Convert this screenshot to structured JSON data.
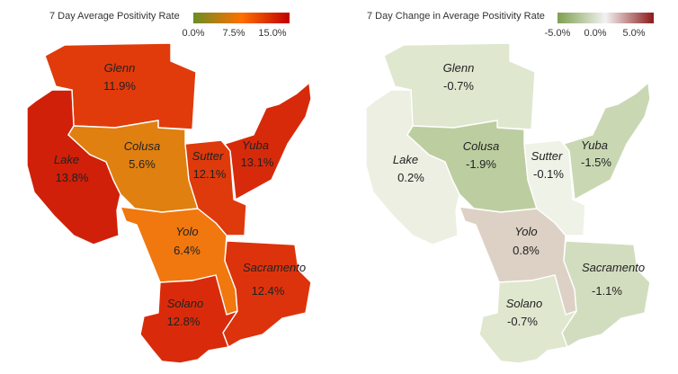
{
  "maps": [
    {
      "id": "positivity",
      "title": "7 Day Average Positivity Rate",
      "legend": {
        "ticks": [
          "0.0%",
          "7.5%",
          "15.0%"
        ],
        "color_low": "#6b8e23",
        "color_mid": "#ff6f00",
        "color_high": "#c00000"
      },
      "counties": [
        {
          "name": "Glenn",
          "value": "11.9%",
          "color": "#e13b0c"
        },
        {
          "name": "Lake",
          "value": "13.8%",
          "color": "#d02009"
        },
        {
          "name": "Colusa",
          "value": "5.6%",
          "color": "#e08011"
        },
        {
          "name": "Sutter",
          "value": "12.1%",
          "color": "#de3a0c"
        },
        {
          "name": "Yuba",
          "value": "13.1%",
          "color": "#d72a0b"
        },
        {
          "name": "Yolo",
          "value": "6.4%",
          "color": "#f0780f"
        },
        {
          "name": "Sacramento",
          "value": "12.4%",
          "color": "#dd330c"
        },
        {
          "name": "Solano",
          "value": "12.8%",
          "color": "#d92b0b"
        }
      ]
    },
    {
      "id": "change",
      "title": "7 Day Change in Average Positivity Rate",
      "legend": {
        "ticks": [
          "-5.0%",
          "0.0%",
          "5.0%"
        ],
        "color_low": "#7f9f4f",
        "color_mid": "#f2f2f2",
        "color_high": "#8b1a1a"
      },
      "counties": [
        {
          "name": "Glenn",
          "value": "-0.7%",
          "color": "#dfe7cf"
        },
        {
          "name": "Lake",
          "value": "0.2%",
          "color": "#ecefe2"
        },
        {
          "name": "Colusa",
          "value": "-1.9%",
          "color": "#bccea0"
        },
        {
          "name": "Sutter",
          "value": "-0.1%",
          "color": "#eff2e6"
        },
        {
          "name": "Yuba",
          "value": "-1.5%",
          "color": "#c9d8b3"
        },
        {
          "name": "Yolo",
          "value": "0.8%",
          "color": "#ddd1c5"
        },
        {
          "name": "Sacramento",
          "value": "-1.1%",
          "color": "#d2ddbf"
        },
        {
          "name": "Solano",
          "value": "-0.7%",
          "color": "#dfe7cf"
        }
      ]
    }
  ]
}
